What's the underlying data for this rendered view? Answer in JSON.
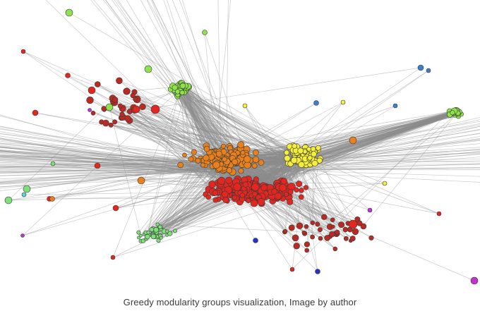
{
  "figure": {
    "caption": "Greedy modularity groups visualization, Image by author"
  },
  "graph": {
    "edge_color": "#8c8c8c",
    "node_stroke": "#3a3a3a",
    "communities": [
      {
        "id": "red",
        "color": "#e3261f"
      },
      {
        "id": "orange",
        "color": "#e9801e"
      },
      {
        "id": "yellow",
        "color": "#f5ee3a"
      },
      {
        "id": "green",
        "color": "#8fe34a"
      },
      {
        "id": "light-green",
        "color": "#7fe07a"
      },
      {
        "id": "dark-red",
        "color": "#b82a22"
      },
      {
        "id": "blue",
        "color": "#3c7fd0"
      },
      {
        "id": "navy",
        "color": "#2430c8"
      },
      {
        "id": "magenta",
        "color": "#c330d6"
      },
      {
        "id": "cyan",
        "color": "#56d6d4"
      }
    ]
  }
}
